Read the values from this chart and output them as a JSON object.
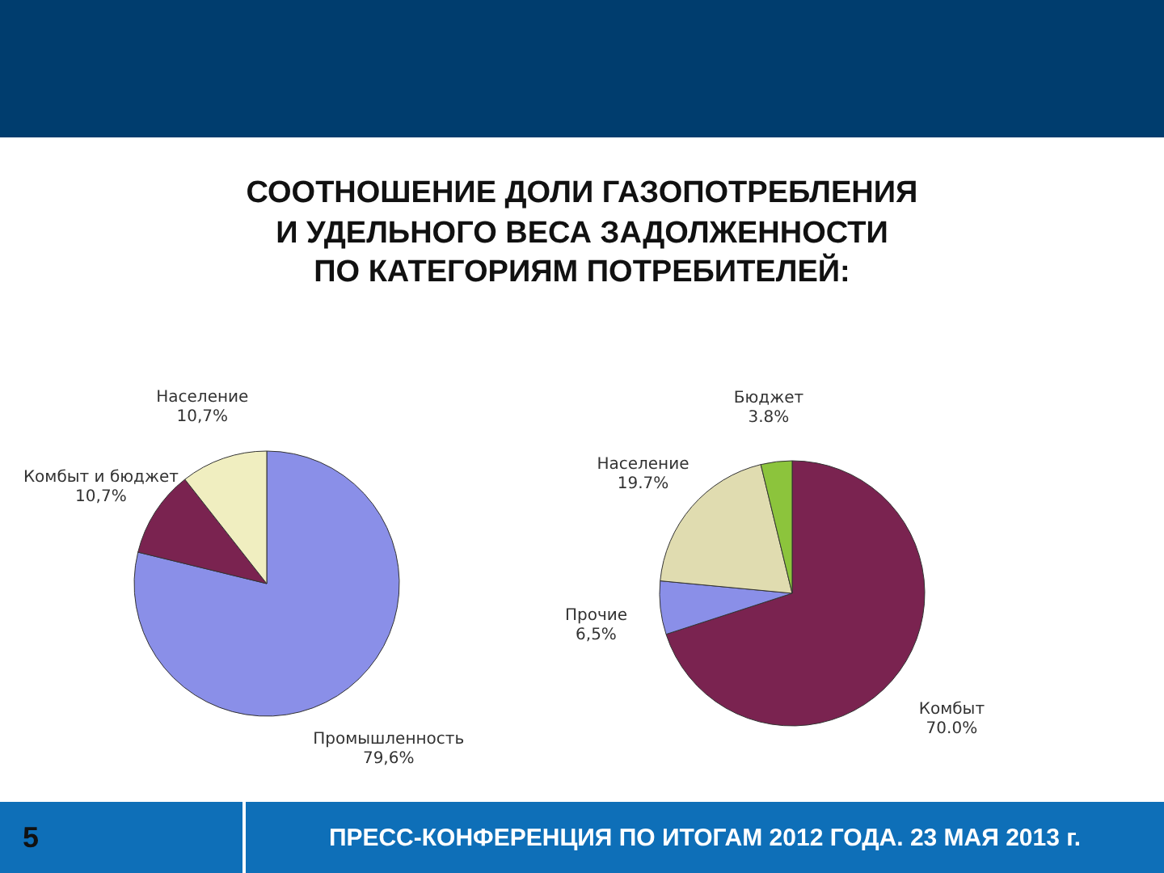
{
  "chart_data": [
    {
      "type": "pie",
      "title": "СООТНОШЕНИЕ ДОЛИ ГАЗОПОТРЕБЛЕНИЯ\nИ УДЕЛЬНОГО ВЕСА ЗАДОЛЖЕННОСТИ\nПО КАТЕГОРИЯМ ПОТРЕБИТЕЛЕЙ:",
      "annotations": [
        "5",
        "ПРЕСС-КОНФЕРЕНЦИЯ ПО ИТОГАМ 2012 ГОДА. 23 МАЯ 2013 г."
      ],
      "categories": [
        "Промышленность",
        "Комбыт и бюджет",
        "Население"
      ],
      "values": [
        79.6,
        10.7,
        10.7
      ],
      "value_labels": [
        "79,6%",
        "10,7%",
        "10,7%"
      ],
      "colors": [
        "#8a8fe8",
        "#7a2350",
        "#f0eec0"
      ],
      "legend": false
    },
    {
      "type": "pie",
      "categories": [
        "Комбыт",
        "Прочие",
        "Население",
        "Бюджет"
      ],
      "values": [
        70.0,
        6.5,
        19.7,
        3.8
      ],
      "value_labels": [
        "70.0%",
        "6,5%",
        "19.7%",
        "3.8%"
      ],
      "colors": [
        "#7a2350",
        "#8a8fe8",
        "#e0dcb0",
        "#8cc43c"
      ],
      "legend": false
    }
  ]
}
